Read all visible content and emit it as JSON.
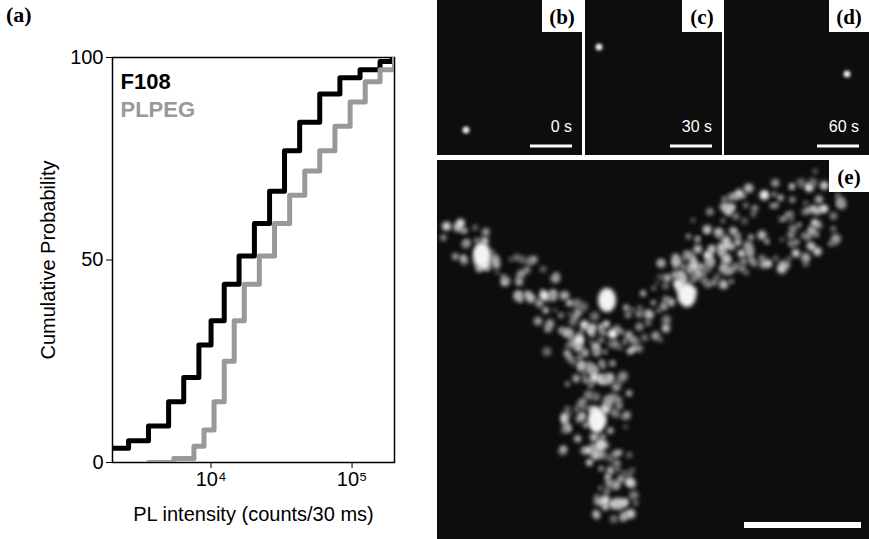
{
  "chart_data": {
    "type": "line",
    "panel": "(a)",
    "xlabel": "PL intensity (counts/30 ms)",
    "ylabel": "Cumulative Probability",
    "log": "x",
    "xlim": [
      2000,
      200000
    ],
    "xticks": [
      {
        "value": 10000,
        "label": "10⁴"
      },
      {
        "value": 100000,
        "label": "10⁵"
      }
    ],
    "ylim": [
      0,
      100
    ],
    "yticks": [
      0,
      50,
      100
    ],
    "legend": "top-left",
    "series": [
      {
        "name": "F108",
        "color": "#000000",
        "x": [
          2000,
          2600,
          3600,
          5000,
          6400,
          8200,
          10000,
          12400,
          15800,
          20300,
          26000,
          33200,
          42500,
          59000,
          82000,
          114000,
          158000,
          193000
        ],
        "values": [
          3.5,
          5.4,
          9,
          15,
          21,
          29,
          35,
          44,
          51,
          59,
          67,
          77,
          84,
          91,
          95,
          97,
          99,
          100
        ]
      },
      {
        "name": "PLPEG",
        "color": "#999999",
        "x": [
          3600,
          5440,
          7560,
          8910,
          10500,
          12400,
          14600,
          17200,
          22000,
          28200,
          36100,
          46200,
          59000,
          75600,
          96900,
          124000,
          158000,
          200000
        ],
        "values": [
          0,
          1,
          4,
          8,
          15,
          25,
          35,
          44,
          51,
          59,
          66,
          72,
          77,
          83,
          89,
          94,
          97,
          100
        ]
      }
    ]
  },
  "images": [
    {
      "panel": "(b)",
      "time": "0 s"
    },
    {
      "panel": "(c)",
      "time": "30 s"
    },
    {
      "panel": "(d)",
      "time": "60 s"
    },
    {
      "panel": "(e)"
    }
  ]
}
